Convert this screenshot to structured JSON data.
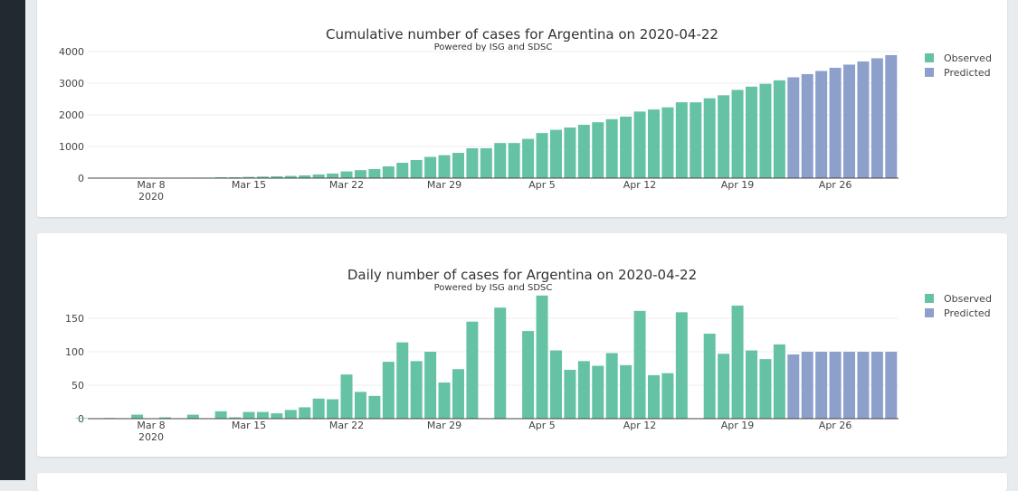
{
  "colors": {
    "observed": "#66c2a5",
    "predicted": "#8da0cb"
  },
  "legend": {
    "observed": "Observed",
    "predicted": "Predicted"
  },
  "chart_data": [
    {
      "type": "bar",
      "title": "Cumulative number of cases for Argentina on 2020-04-22",
      "subtitle": "Powered by ISG and SDSC",
      "start_date": "2020-03-03",
      "observed_until": "2020-04-22",
      "xticks": [
        "Mar 8",
        "Mar 15",
        "Mar 22",
        "Mar 29",
        "Apr 5",
        "Apr 12",
        "Apr 19",
        "Apr 26"
      ],
      "xtick_year": "2020",
      "yticks": [
        "0",
        "1000",
        "2000",
        "3000",
        "4000"
      ],
      "ylim": [
        0,
        4100
      ],
      "values": [
        1,
        1,
        2,
        2,
        8,
        8,
        10,
        10,
        16,
        16,
        27,
        29,
        39,
        49,
        57,
        70,
        87,
        117,
        146,
        212,
        252,
        286,
        371,
        485,
        571,
        671,
        725,
        799,
        944,
        944,
        1110,
        1110,
        1241,
        1425,
        1527,
        1600,
        1686,
        1765,
        1863,
        1943,
        2104,
        2169,
        2237,
        2396,
        2396,
        2523,
        2620,
        2789,
        2891,
        2980,
        3091,
        3187,
        3287,
        3387,
        3487,
        3587,
        3687,
        3787,
        3887
      ]
    },
    {
      "type": "bar",
      "title": "Daily number of cases for Argentina on 2020-04-22",
      "subtitle": "Powered by ISG and SDSC",
      "start_date": "2020-03-03",
      "observed_until": "2020-04-22",
      "xticks": [
        "Mar 8",
        "Mar 15",
        "Mar 22",
        "Mar 29",
        "Apr 5",
        "Apr 12",
        "Apr 19",
        "Apr 26"
      ],
      "xtick_year": "2020",
      "yticks": [
        "0",
        "50",
        "100",
        "150"
      ],
      "ylim": [
        0,
        190
      ],
      "values": [
        1,
        0,
        1,
        0,
        6,
        0,
        2,
        0,
        6,
        0,
        11,
        2,
        10,
        10,
        8,
        13,
        17,
        30,
        29,
        66,
        40,
        34,
        85,
        114,
        86,
        100,
        54,
        74,
        145,
        0,
        166,
        0,
        131,
        184,
        102,
        73,
        86,
        79,
        98,
        80,
        161,
        65,
        68,
        159,
        0,
        127,
        97,
        169,
        102,
        89,
        111,
        96,
        100,
        100,
        100,
        100,
        100,
        100,
        100
      ]
    }
  ]
}
